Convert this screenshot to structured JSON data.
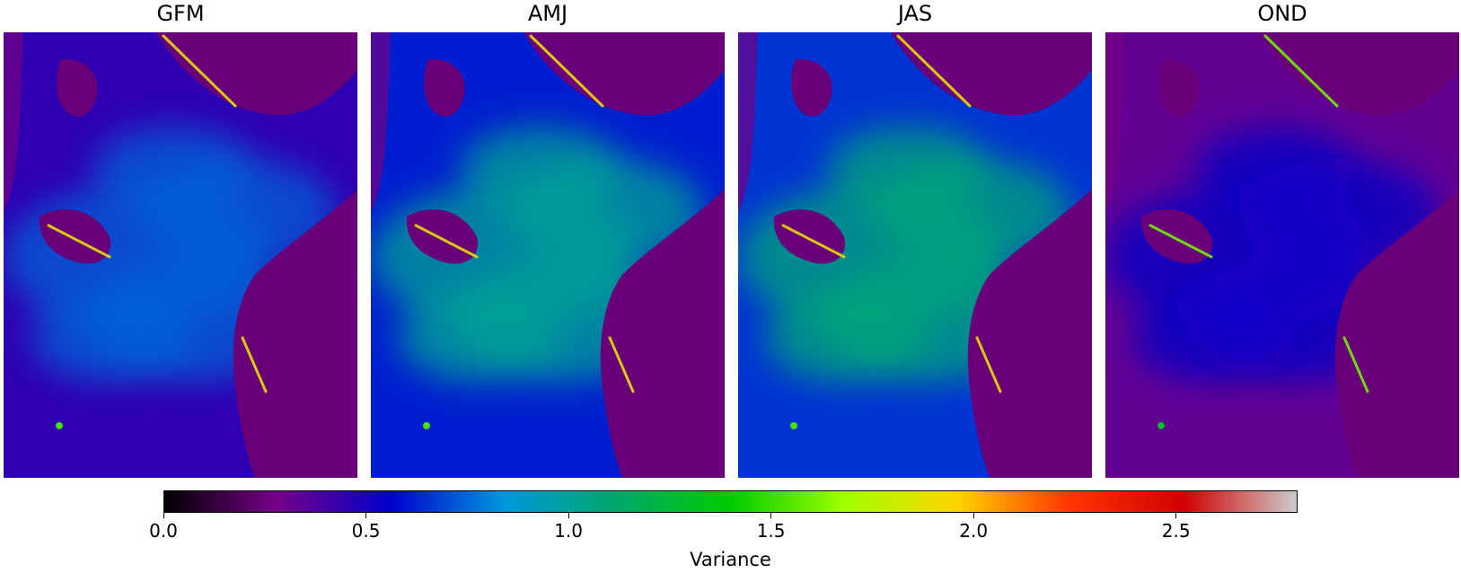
{
  "chart_data": {
    "type": "heatmap",
    "panels": [
      {
        "title": "GFM",
        "mean_ocean_variance": 0.55,
        "mean_land_variance": 0.25,
        "peak_variance": 1.9
      },
      {
        "title": "AMJ",
        "mean_ocean_variance": 0.75,
        "mean_land_variance": 0.25,
        "peak_variance": 1.9
      },
      {
        "title": "JAS",
        "mean_ocean_variance": 0.8,
        "mean_land_variance": 0.25,
        "peak_variance": 1.9
      },
      {
        "title": "OND",
        "mean_ocean_variance": 0.4,
        "mean_land_variance": 0.25,
        "peak_variance": 1.6
      }
    ],
    "colorbar": {
      "label": "Variance",
      "range": [
        0.0,
        2.8
      ],
      "ticks": [
        "0.0",
        "0.5",
        "1.0",
        "1.5",
        "2.0",
        "2.5"
      ],
      "tick_values": [
        0.0,
        0.5,
        1.0,
        1.5,
        2.0,
        2.5
      ],
      "colormap": "nipy_spectral",
      "stops": [
        "#000000",
        "#760088",
        "#0000cc",
        "#0097dd",
        "#00a86a",
        "#00cc00",
        "#9fff00",
        "#ffd400",
        "#ff3300",
        "#d00000",
        "#cccccc"
      ]
    }
  }
}
